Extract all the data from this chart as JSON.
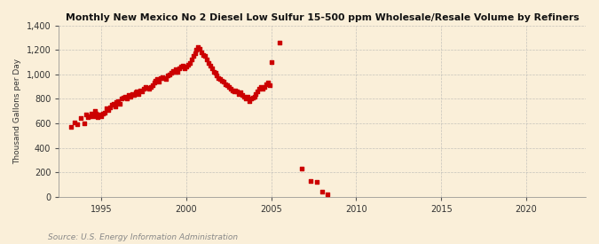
{
  "title": "Monthly New Mexico No 2 Diesel Low Sulfur 15-500 ppm Wholesale/Resale Volume by Refiners",
  "ylabel": "Thousand Gallons per Day",
  "source": "Source: U.S. Energy Information Administration",
  "background_color": "#faefd9",
  "marker_color": "#cc0000",
  "ylim": [
    0,
    1400
  ],
  "yticks": [
    0,
    200,
    400,
    600,
    800,
    1000,
    1200,
    1400
  ],
  "xlim_start": 1992.5,
  "xlim_end": 2023.5,
  "xticks": [
    1995,
    2000,
    2005,
    2010,
    2015,
    2020
  ],
  "data_points": [
    [
      1993.2,
      570
    ],
    [
      1993.4,
      610
    ],
    [
      1993.6,
      590
    ],
    [
      1993.8,
      640
    ],
    [
      1994.0,
      600
    ],
    [
      1994.1,
      670
    ],
    [
      1994.2,
      650
    ],
    [
      1994.3,
      660
    ],
    [
      1994.4,
      680
    ],
    [
      1994.5,
      660
    ],
    [
      1994.6,
      700
    ],
    [
      1994.7,
      680
    ],
    [
      1994.8,
      650
    ],
    [
      1994.9,
      670
    ],
    [
      1995.0,
      660
    ],
    [
      1995.1,
      680
    ],
    [
      1995.2,
      690
    ],
    [
      1995.3,
      720
    ],
    [
      1995.4,
      710
    ],
    [
      1995.5,
      730
    ],
    [
      1995.6,
      750
    ],
    [
      1995.7,
      760
    ],
    [
      1995.8,
      740
    ],
    [
      1995.9,
      770
    ],
    [
      1996.0,
      780
    ],
    [
      1996.1,
      760
    ],
    [
      1996.2,
      800
    ],
    [
      1996.3,
      810
    ],
    [
      1996.4,
      820
    ],
    [
      1996.5,
      800
    ],
    [
      1996.6,
      830
    ],
    [
      1996.7,
      820
    ],
    [
      1996.8,
      840
    ],
    [
      1996.9,
      830
    ],
    [
      1997.0,
      850
    ],
    [
      1997.1,
      860
    ],
    [
      1997.2,
      840
    ],
    [
      1997.3,
      870
    ],
    [
      1997.4,
      860
    ],
    [
      1997.5,
      880
    ],
    [
      1997.6,
      900
    ],
    [
      1997.7,
      890
    ],
    [
      1997.8,
      880
    ],
    [
      1997.9,
      900
    ],
    [
      1998.0,
      910
    ],
    [
      1998.1,
      930
    ],
    [
      1998.2,
      950
    ],
    [
      1998.3,
      960
    ],
    [
      1998.4,
      940
    ],
    [
      1998.5,
      970
    ],
    [
      1998.6,
      980
    ],
    [
      1998.7,
      970
    ],
    [
      1998.8,
      960
    ],
    [
      1998.9,
      990
    ],
    [
      1999.0,
      1000
    ],
    [
      1999.1,
      1010
    ],
    [
      1999.2,
      1030
    ],
    [
      1999.3,
      1020
    ],
    [
      1999.4,
      1040
    ],
    [
      1999.5,
      1020
    ],
    [
      1999.6,
      1050
    ],
    [
      1999.7,
      1060
    ],
    [
      1999.8,
      1070
    ],
    [
      1999.9,
      1050
    ],
    [
      2000.0,
      1060
    ],
    [
      2000.1,
      1080
    ],
    [
      2000.2,
      1090
    ],
    [
      2000.3,
      1120
    ],
    [
      2000.4,
      1150
    ],
    [
      2000.5,
      1170
    ],
    [
      2000.6,
      1200
    ],
    [
      2000.7,
      1220
    ],
    [
      2000.8,
      1210
    ],
    [
      2000.9,
      1180
    ],
    [
      2001.0,
      1160
    ],
    [
      2001.1,
      1150
    ],
    [
      2001.2,
      1120
    ],
    [
      2001.3,
      1090
    ],
    [
      2001.4,
      1070
    ],
    [
      2001.5,
      1050
    ],
    [
      2001.6,
      1020
    ],
    [
      2001.7,
      1010
    ],
    [
      2001.8,
      990
    ],
    [
      2001.9,
      970
    ],
    [
      2002.0,
      960
    ],
    [
      2002.1,
      950
    ],
    [
      2002.2,
      940
    ],
    [
      2002.3,
      920
    ],
    [
      2002.4,
      910
    ],
    [
      2002.5,
      900
    ],
    [
      2002.6,
      880
    ],
    [
      2002.7,
      870
    ],
    [
      2002.8,
      860
    ],
    [
      2002.9,
      870
    ],
    [
      2003.0,
      860
    ],
    [
      2003.1,
      840
    ],
    [
      2003.2,
      850
    ],
    [
      2003.3,
      830
    ],
    [
      2003.4,
      820
    ],
    [
      2003.5,
      800
    ],
    [
      2003.6,
      820
    ],
    [
      2003.7,
      780
    ],
    [
      2003.8,
      800
    ],
    [
      2003.9,
      810
    ],
    [
      2004.0,
      820
    ],
    [
      2004.1,
      840
    ],
    [
      2004.2,
      860
    ],
    [
      2004.3,
      880
    ],
    [
      2004.4,
      900
    ],
    [
      2004.5,
      880
    ],
    [
      2004.6,
      900
    ],
    [
      2004.7,
      920
    ],
    [
      2004.8,
      930
    ],
    [
      2004.9,
      910
    ],
    [
      2005.0,
      1100
    ],
    [
      2005.5,
      1260
    ],
    [
      2006.8,
      230
    ],
    [
      2007.3,
      130
    ],
    [
      2007.7,
      120
    ],
    [
      2008.0,
      40
    ],
    [
      2008.3,
      20
    ]
  ]
}
